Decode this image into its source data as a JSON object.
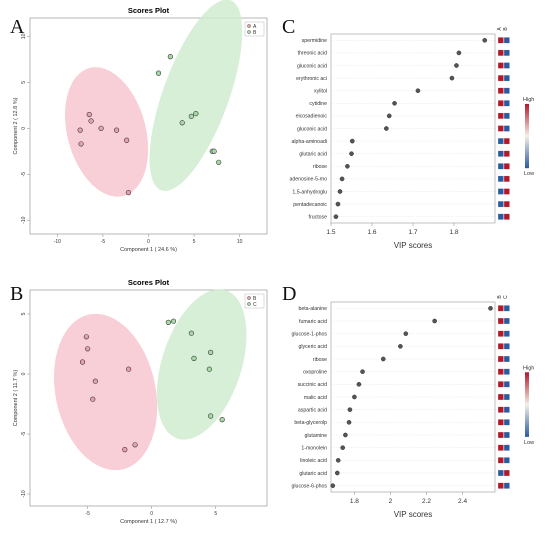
{
  "panels": {
    "A": "A",
    "B": "B",
    "C": "C",
    "D": "D"
  },
  "colors": {
    "groupA": "#e8a0b0",
    "groupB": "#a8d8a8",
    "ellipseA": "#f7c6d0",
    "ellipseB": "#cfeccf",
    "high": "#b2182b",
    "low": "#2c5aa0"
  },
  "chart_data": [
    {
      "type": "scatter",
      "panel": "A",
      "title": "Scores Plot",
      "xlabel": "Component 1 ( 24.6 %)",
      "ylabel": "Component 2 ( 12.8 %)",
      "xlim": [
        -13,
        13
      ],
      "ylim": [
        -11.5,
        12
      ],
      "xticks": [
        -10,
        -5,
        0,
        5,
        10
      ],
      "yticks": [
        -10,
        -5,
        0,
        5,
        10
      ],
      "legend": [
        "A",
        "B"
      ],
      "ellipses": [
        {
          "group": "A",
          "cx": -4.6,
          "cy": -0.4,
          "rx": 4.3,
          "ry": 7.2,
          "angle": -15
        },
        {
          "group": "B",
          "cx": 5.2,
          "cy": 3.6,
          "rx": 3.6,
          "ry": 11.0,
          "angle": 20
        }
      ],
      "series": [
        {
          "name": "A",
          "points": [
            [
              -7.5,
              -0.2
            ],
            [
              -7.4,
              -1.7
            ],
            [
              -6.5,
              1.5
            ],
            [
              -6.3,
              0.8
            ],
            [
              -5.2,
              0.0
            ],
            [
              -3.5,
              -0.2
            ],
            [
              -2.4,
              -1.3
            ],
            [
              -2.2,
              -7.0
            ]
          ]
        },
        {
          "name": "B",
          "points": [
            [
              1.1,
              6.0
            ],
            [
              2.4,
              7.8
            ],
            [
              3.7,
              0.6
            ],
            [
              4.7,
              1.3
            ],
            [
              5.2,
              1.6
            ],
            [
              7.0,
              -2.5
            ],
            [
              7.2,
              -2.5
            ],
            [
              7.7,
              -3.7
            ]
          ]
        }
      ]
    },
    {
      "type": "scatter",
      "panel": "B",
      "title": "Scores Plot",
      "xlabel": "Component 1 ( 12.7 %)",
      "ylabel": "Component 2 ( 11.7 %)",
      "xlim": [
        -9.5,
        9
      ],
      "ylim": [
        -11,
        7
      ],
      "xticks": [
        -5,
        0,
        5
      ],
      "yticks": [
        -10,
        -5,
        0,
        5
      ],
      "legend": [
        "B",
        "C"
      ],
      "ellipses": [
        {
          "group": "B",
          "cx": -3.6,
          "cy": -1.5,
          "rx": 3.9,
          "ry": 6.6,
          "angle": -12
        },
        {
          "group": "C",
          "cx": 3.9,
          "cy": 0.8,
          "rx": 3.1,
          "ry": 6.5,
          "angle": 18
        }
      ],
      "series": [
        {
          "name": "B",
          "points": [
            [
              -5.4,
              1.0
            ],
            [
              -5.1,
              3.1
            ],
            [
              -5.0,
              2.1
            ],
            [
              -4.6,
              -2.1
            ],
            [
              -4.4,
              -0.6
            ],
            [
              -1.8,
              0.4
            ],
            [
              -1.3,
              -5.9
            ],
            [
              -2.1,
              -6.3
            ]
          ]
        },
        {
          "name": "C",
          "points": [
            [
              1.3,
              4.3
            ],
            [
              1.7,
              4.4
            ],
            [
              3.1,
              3.4
            ],
            [
              3.3,
              1.3
            ],
            [
              4.6,
              1.8
            ],
            [
              4.5,
              0.4
            ],
            [
              4.6,
              -3.5
            ],
            [
              5.5,
              -3.8
            ]
          ]
        }
      ]
    },
    {
      "type": "scatter",
      "panel": "C",
      "xlabel": "VIP scores",
      "xlim": [
        1.5,
        1.9
      ],
      "xticks": [
        1.5,
        1.6,
        1.7,
        1.8
      ],
      "heat_columns": [
        "A",
        "B"
      ],
      "colorbar": {
        "high": "High",
        "low": "Low"
      },
      "features": [
        "spermidine",
        "threonic acid",
        "gluconic acid",
        "erythronic aci",
        "xylitol",
        "cytidine",
        "eicosadienoic",
        "gluconic acid",
        "alpha-aminoadi",
        "glutaric acid",
        "ribose",
        "adenosine-5-mo",
        "1,5-anhydroglu",
        "pentadecanoic",
        "fructose"
      ],
      "values": [
        1.875,
        1.812,
        1.806,
        1.795,
        1.712,
        1.655,
        1.642,
        1.635,
        1.552,
        1.55,
        1.54,
        1.527,
        1.522,
        1.517,
        1.512
      ],
      "heat": [
        [
          1,
          0
        ],
        [
          1,
          0
        ],
        [
          1,
          0
        ],
        [
          1,
          0
        ],
        [
          1,
          0
        ],
        [
          1,
          0
        ],
        [
          1,
          0
        ],
        [
          1,
          0
        ],
        [
          0,
          1
        ],
        [
          0,
          1
        ],
        [
          0,
          1
        ],
        [
          0,
          1
        ],
        [
          0,
          1
        ],
        [
          0,
          1
        ],
        [
          0,
          1
        ]
      ]
    },
    {
      "type": "scatter",
      "panel": "D",
      "xlabel": "VIP scores",
      "xlim": [
        1.67,
        2.58
      ],
      "xticks": [
        1.8,
        2.0,
        2.2,
        2.4
      ],
      "heat_columns": [
        "B",
        "C"
      ],
      "colorbar": {
        "high": "High",
        "low": "Low"
      },
      "features": [
        "beta-alanine",
        "fumaric acid",
        "glucose-1-phos",
        "glyceric acid",
        "ribose",
        "oxoproline",
        "succinic acid",
        "malic acid",
        "aspartic acid",
        "beta-glycerolp",
        "glutamine",
        "1-monolein",
        "linoleic acid",
        "glutaric acid",
        "glucose-6-phos"
      ],
      "values": [
        2.555,
        2.245,
        2.085,
        2.055,
        1.96,
        1.845,
        1.825,
        1.8,
        1.775,
        1.77,
        1.75,
        1.735,
        1.71,
        1.705,
        1.68
      ],
      "heat": [
        [
          1,
          0
        ],
        [
          1,
          0
        ],
        [
          1,
          0
        ],
        [
          1,
          0
        ],
        [
          1,
          0
        ],
        [
          1,
          0
        ],
        [
          1,
          0
        ],
        [
          1,
          0
        ],
        [
          1,
          0
        ],
        [
          1,
          0
        ],
        [
          1,
          0
        ],
        [
          1,
          0
        ],
        [
          1,
          0
        ],
        [
          0,
          1
        ],
        [
          1,
          0
        ]
      ]
    }
  ]
}
